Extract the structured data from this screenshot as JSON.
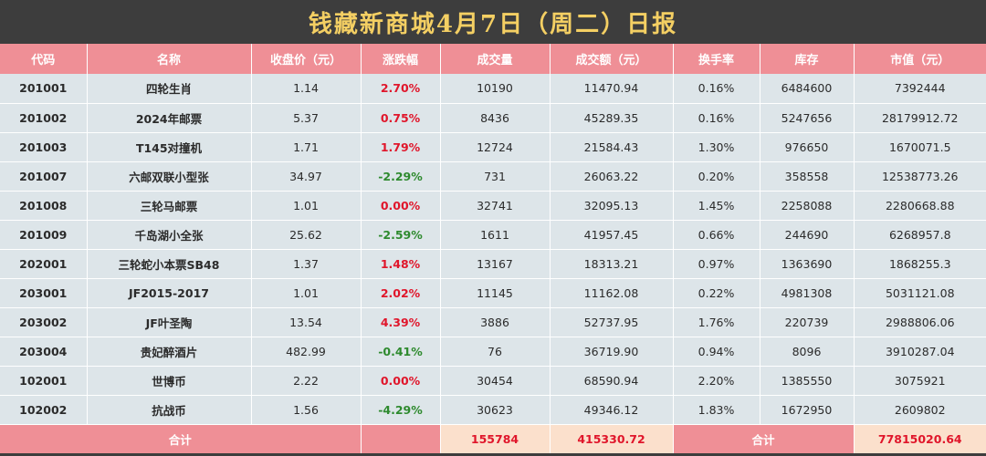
{
  "title": "钱藏新商城4月7日（周二）日报",
  "columns": [
    "代码",
    "名称",
    "收盘价（元）",
    "涨跌幅",
    "成交量",
    "成交额（元）",
    "换手率",
    "库存",
    "市值（元）"
  ],
  "rows": [
    {
      "code": "201001",
      "name": "四轮生肖",
      "close": "1.14",
      "change": "2.70%",
      "direction": "up",
      "volume": "10190",
      "turnover": "11470.94",
      "turnover_rate": "0.16%",
      "stock": "6484600",
      "market_value": "7392444"
    },
    {
      "code": "201002",
      "name": "2024年邮票",
      "close": "5.37",
      "change": "0.75%",
      "direction": "up",
      "volume": "8436",
      "turnover": "45289.35",
      "turnover_rate": "0.16%",
      "stock": "5247656",
      "market_value": "28179912.72"
    },
    {
      "code": "201003",
      "name": "T145对撞机",
      "close": "1.71",
      "change": "1.79%",
      "direction": "up",
      "volume": "12724",
      "turnover": "21584.43",
      "turnover_rate": "1.30%",
      "stock": "976650",
      "market_value": "1670071.5"
    },
    {
      "code": "201007",
      "name": "六邮双联小型张",
      "close": "34.97",
      "change": "-2.29%",
      "direction": "down",
      "volume": "731",
      "turnover": "26063.22",
      "turnover_rate": "0.20%",
      "stock": "358558",
      "market_value": "12538773.26"
    },
    {
      "code": "201008",
      "name": "三轮马邮票",
      "close": "1.01",
      "change": "0.00%",
      "direction": "up",
      "volume": "32741",
      "turnover": "32095.13",
      "turnover_rate": "1.45%",
      "stock": "2258088",
      "market_value": "2280668.88"
    },
    {
      "code": "201009",
      "name": "千岛湖小全张",
      "close": "25.62",
      "change": "-2.59%",
      "direction": "down",
      "volume": "1611",
      "turnover": "41957.45",
      "turnover_rate": "0.66%",
      "stock": "244690",
      "market_value": "6268957.8"
    },
    {
      "code": "202001",
      "name": "三轮蛇小本票SB48",
      "close": "1.37",
      "change": "1.48%",
      "direction": "up",
      "volume": "13167",
      "turnover": "18313.21",
      "turnover_rate": "0.97%",
      "stock": "1363690",
      "market_value": "1868255.3"
    },
    {
      "code": "203001",
      "name": "JF2015-2017",
      "close": "1.01",
      "change": "2.02%",
      "direction": "up",
      "volume": "11145",
      "turnover": "11162.08",
      "turnover_rate": "0.22%",
      "stock": "4981308",
      "market_value": "5031121.08"
    },
    {
      "code": "203002",
      "name": "JF叶圣陶",
      "close": "13.54",
      "change": "4.39%",
      "direction": "up",
      "volume": "3886",
      "turnover": "52737.95",
      "turnover_rate": "1.76%",
      "stock": "220739",
      "market_value": "2988806.06"
    },
    {
      "code": "203004",
      "name": "贵妃醉酒片",
      "close": "482.99",
      "change": "-0.41%",
      "direction": "down",
      "volume": "76",
      "turnover": "36719.90",
      "turnover_rate": "0.94%",
      "stock": "8096",
      "market_value": "3910287.04"
    },
    {
      "code": "102001",
      "name": "世博币",
      "close": "2.22",
      "change": "0.00%",
      "direction": "up",
      "volume": "30454",
      "turnover": "68590.94",
      "turnover_rate": "2.20%",
      "stock": "1385550",
      "market_value": "3075921"
    },
    {
      "code": "102002",
      "name": "抗战币",
      "close": "1.56",
      "change": "-4.29%",
      "direction": "down",
      "volume": "30623",
      "turnover": "49346.12",
      "turnover_rate": "1.83%",
      "stock": "1672950",
      "market_value": "2609802"
    }
  ],
  "totals": {
    "label_left": "合计",
    "volume": "155784",
    "turnover": "415330.72",
    "label_right": "合计",
    "market_value": "77815020.64"
  },
  "colors": {
    "title_bar": "#3d3d3d",
    "title_text": "#f4cf63",
    "header": "#ef8f96",
    "row": "#dde5e9",
    "total_highlight": "#fbe0cc",
    "up": "#e0162b",
    "down": "#2e8a2e"
  }
}
